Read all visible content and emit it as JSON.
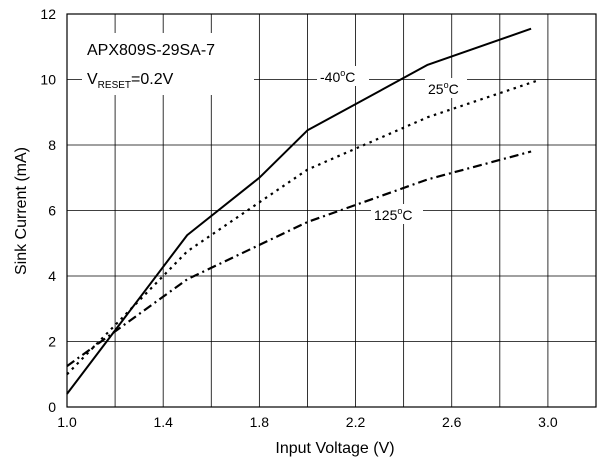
{
  "chart_data": {
    "type": "line",
    "title": "",
    "xlabel": "Input Voltage (V)",
    "ylabel": "Sink Current (mA)",
    "xlim": [
      1.0,
      3.2
    ],
    "ylim": [
      0,
      12
    ],
    "x_ticks": [
      "1.0",
      "1.4",
      "1.8",
      "2.2",
      "2.6",
      "3.0"
    ],
    "y_ticks": [
      "0",
      "2",
      "4",
      "6",
      "8",
      "10",
      "12"
    ],
    "grid": true,
    "annotation": {
      "part": "APX809S-29SA-7",
      "vreset_main": "V",
      "vreset_sub": "RESET",
      "vreset_value": "=0.2V"
    },
    "series": [
      {
        "name": "-40°C",
        "label_text": "-40",
        "label_deg": "o",
        "label_unit": "C",
        "style": "solid",
        "points": [
          [
            1.0,
            0.4
          ],
          [
            1.5,
            5.25
          ],
          [
            1.8,
            7.0
          ],
          [
            2.0,
            8.45
          ],
          [
            2.5,
            10.45
          ],
          [
            2.93,
            11.55
          ]
        ]
      },
      {
        "name": "25°C",
        "label_text": "25",
        "label_deg": "o",
        "label_unit": "C",
        "style": "dotted",
        "points": [
          [
            1.0,
            1.0
          ],
          [
            1.5,
            4.75
          ],
          [
            2.0,
            7.25
          ],
          [
            2.5,
            8.85
          ],
          [
            2.95,
            9.95
          ]
        ]
      },
      {
        "name": "125°C",
        "label_text": "125",
        "label_deg": "o",
        "label_unit": "C",
        "style": "dashdot",
        "points": [
          [
            1.0,
            1.25
          ],
          [
            1.5,
            3.9
          ],
          [
            2.0,
            5.65
          ],
          [
            2.5,
            6.95
          ],
          [
            2.93,
            7.8
          ]
        ]
      }
    ]
  }
}
